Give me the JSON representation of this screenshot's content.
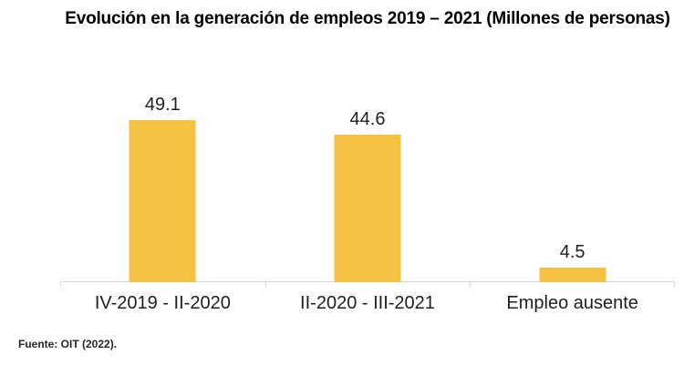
{
  "chart_data": {
    "type": "bar",
    "title": "Evolución en la generación de empleos 2019 – 2021 (Millones de personas)",
    "categories": [
      "IV-2019 - II-2020",
      "II-2020 - III-2021",
      "Empleo ausente"
    ],
    "values": [
      49.1,
      44.6,
      4.5
    ],
    "data_labels": [
      "49.1",
      "44.6",
      "4.5"
    ],
    "xlabel": "",
    "ylabel": "",
    "ylim": [
      0,
      52
    ],
    "grid": false,
    "legend_position": "none",
    "bar_color": "#F5C243",
    "axis_color": "#D9D9D9",
    "label_color": "#1F1F1F",
    "title_color": "#000000"
  },
  "footer": {
    "source": "Fuente: OIT (2022)."
  }
}
